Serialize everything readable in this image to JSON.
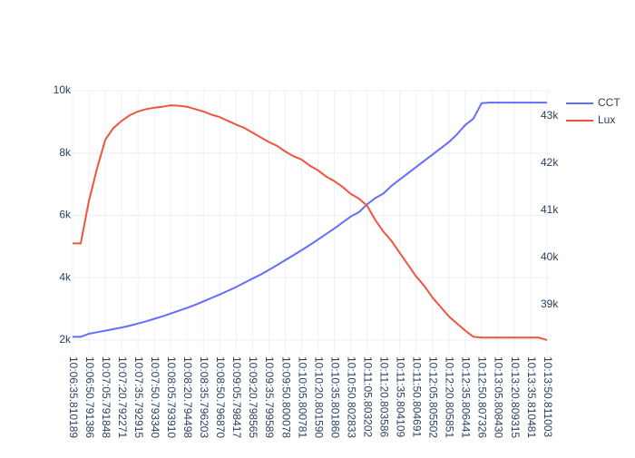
{
  "chart_data": {
    "type": "line",
    "categories": [
      "10:06:35.810189",
      null,
      "10:06:50.791386",
      null,
      "10:07:05.791848",
      null,
      "10:07:20.792271",
      null,
      "10:07:35.792915",
      null,
      "10:07:50.793340",
      null,
      "10:08:05.793910",
      null,
      "10:08:20.794498",
      null,
      "10:08:35.796203",
      null,
      "10:08:50.796870",
      null,
      "10:09:05.798417",
      null,
      "10:09:20.798565",
      null,
      "10:09:35.799589",
      null,
      "10:09:50.800078",
      null,
      "10:10:05.800781",
      null,
      "10:10:20.801590",
      null,
      "10:10:35.801860",
      null,
      "10:10:50.802833",
      null,
      "10:11:05.803202",
      null,
      "10:11:20.803586",
      null,
      "10:11:35.804109",
      null,
      "10:11:50.804691",
      null,
      "10:12:05.805502",
      null,
      "10:12:20.805851",
      null,
      "10:12:35.806441",
      null,
      "10:12:50.807326",
      null,
      "10:13:05.808430",
      null,
      "10:13:20.809315",
      null,
      "10:13:35.810481",
      null,
      "10:13:50.811003"
    ],
    "series": [
      {
        "name": "CCT",
        "color": "#636efa",
        "values": [
          2100,
          2100,
          2200,
          2250,
          2300,
          2350,
          2400,
          2460,
          2530,
          2600,
          2680,
          2760,
          2850,
          2940,
          3030,
          3130,
          3240,
          3350,
          3460,
          3580,
          3700,
          3840,
          3970,
          4100,
          4250,
          4400,
          4560,
          4720,
          4880,
          5050,
          5220,
          5400,
          5580,
          5770,
          5960,
          6100,
          6350,
          6550,
          6700,
          6950,
          7150,
          7350,
          7550,
          7750,
          7950,
          8150,
          8350,
          8600,
          8900,
          9100,
          9600,
          9620,
          9620,
          9620,
          9620,
          9620,
          9620,
          9620,
          9620
        ]
      },
      {
        "name": "Lux",
        "color": "#EF553B",
        "axis": "y2",
        "values": [
          40300,
          40300,
          41200,
          41900,
          42500,
          42750,
          42900,
          43020,
          43100,
          43150,
          43180,
          43200,
          43230,
          43220,
          43200,
          43150,
          43100,
          43030,
          42980,
          42900,
          42820,
          42750,
          42650,
          42550,
          42450,
          42370,
          42250,
          42150,
          42080,
          41950,
          41850,
          41720,
          41620,
          41500,
          41350,
          41250,
          41100,
          40800,
          40550,
          40350,
          40100,
          39850,
          39600,
          39400,
          39150,
          38950,
          38750,
          38600,
          38450,
          38320,
          38300,
          38300,
          38300,
          38300,
          38300,
          38300,
          38300,
          38300,
          38250
        ]
      }
    ],
    "ylim": [
      1560,
      10000
    ],
    "yticks": [
      {
        "value": 2000,
        "label": "2k"
      },
      {
        "value": 4000,
        "label": "4k"
      },
      {
        "value": 6000,
        "label": "6k"
      },
      {
        "value": 8000,
        "label": "8k"
      },
      {
        "value": 10000,
        "label": "10k"
      }
    ],
    "y2lim": [
      37960,
      43540
    ],
    "y2ticks": [
      {
        "value": 39000,
        "label": "39k"
      },
      {
        "value": 40000,
        "label": "40k"
      },
      {
        "value": 41000,
        "label": "41k"
      },
      {
        "value": 42000,
        "label": "42k"
      },
      {
        "value": 43000,
        "label": "43k"
      }
    ],
    "grid": true
  }
}
